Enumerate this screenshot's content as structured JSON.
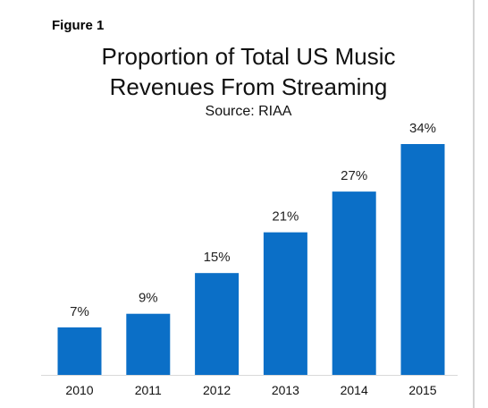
{
  "figure_label": "Figure 1",
  "chart_data": {
    "type": "bar",
    "title": "Proportion of Total US Music Revenues From Streaming",
    "title_lines": [
      "Proportion of Total US Music",
      "Revenues From Streaming"
    ],
    "subtitle": "Source: RIAA",
    "categories": [
      "2010",
      "2011",
      "2012",
      "2013",
      "2014",
      "2015"
    ],
    "values": [
      7,
      9,
      15,
      21,
      27,
      34
    ],
    "data_labels": [
      "7%",
      "9%",
      "15%",
      "21%",
      "27%",
      "34%"
    ],
    "ylim": [
      0,
      34
    ],
    "bar_color": "#0b6fc7",
    "grid": false,
    "legend": "none"
  }
}
